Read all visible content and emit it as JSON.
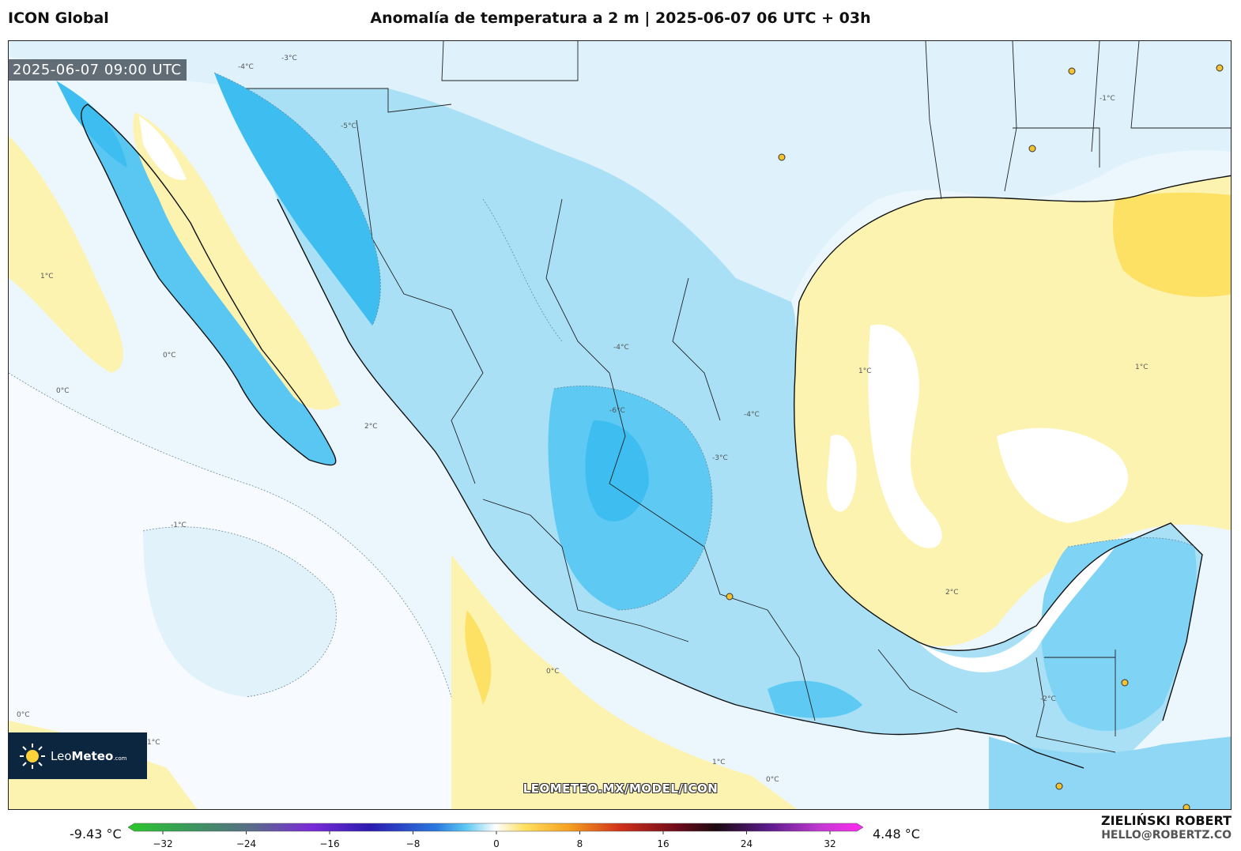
{
  "header": {
    "model_name": "ICON Global",
    "title": "Anomalía de temperatura a 2 m | 2025-06-07 06 UTC + 03h"
  },
  "map": {
    "timestamp": "2025-06-07 09:00 UTC",
    "watermark": "LEOMETEO.MX/MODEL/ICON",
    "logo": {
      "brand_light": "Leo",
      "brand_bold": "Meteo",
      "suffix": ".com",
      "icon": "sun-icon"
    },
    "contour_labels": [
      "-6°C",
      "-5°C",
      "-4°C",
      "-3°C",
      "-2°C",
      "-1°C",
      "0°C",
      "1°C",
      "2°C"
    ],
    "colors": {
      "land_border": "#111111",
      "cold_light": "#dff1fb",
      "cold_mid": "#9fdcf5",
      "cold_strong": "#3fbef0",
      "warm_light": "#fdf3b0",
      "warm_mid": "#fce165"
    }
  },
  "legend": {
    "min_value": "-9.43 °C",
    "max_value": "4.48 °C",
    "ticks": [
      "−32",
      "−24",
      "−16",
      "−8",
      "0",
      "8",
      "16",
      "24",
      "32"
    ]
  },
  "credits": {
    "author": "ZIELIŃSKI ROBERT",
    "email": "HELLO@ROBERTZ.CO"
  }
}
